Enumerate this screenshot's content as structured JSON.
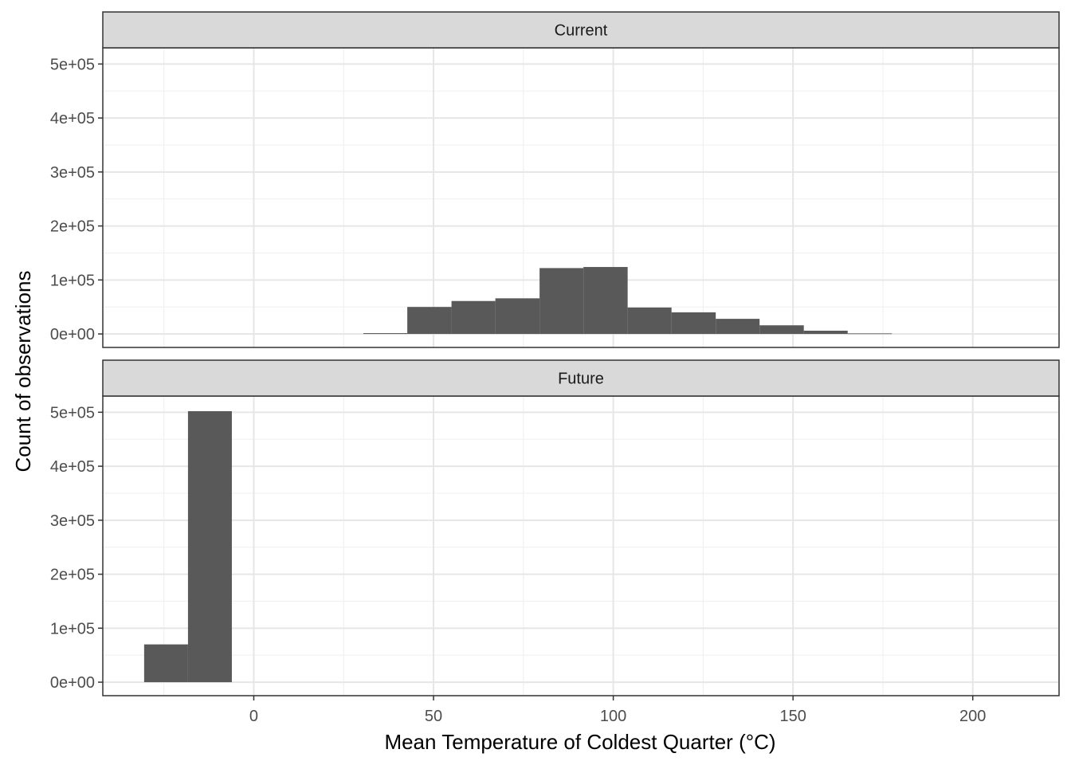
{
  "chart_data": {
    "type": "histogram",
    "xlabel": "Mean Temperature of Coldest Quarter (°C)",
    "ylabel": "Count of observations",
    "xlim": [
      -42,
      224
    ],
    "ylim": [
      -25000,
      530000
    ],
    "x_ticks": [
      0,
      50,
      100,
      150,
      200
    ],
    "x_tick_labels": [
      "0",
      "50",
      "100",
      "150",
      "200"
    ],
    "y_ticks": [
      0,
      100000,
      200000,
      300000,
      400000,
      500000
    ],
    "y_tick_labels": [
      "0e+00",
      "1e+05",
      "2e+05",
      "3e+05",
      "4e+05",
      "5e+05"
    ],
    "grid": true,
    "bar_color": "#595959",
    "strip_fill": "#d9d9d9",
    "panels": [
      {
        "strip_label": "Current",
        "bins": [
          {
            "x0": 30.5,
            "x1": 42.7,
            "count": 1500
          },
          {
            "x0": 42.7,
            "x1": 55.0,
            "count": 50000
          },
          {
            "x0": 55.0,
            "x1": 67.2,
            "count": 61000
          },
          {
            "x0": 67.2,
            "x1": 79.5,
            "count": 66000
          },
          {
            "x0": 79.5,
            "x1": 91.7,
            "count": 122000
          },
          {
            "x0": 91.7,
            "x1": 104.0,
            "count": 124000
          },
          {
            "x0": 104.0,
            "x1": 116.2,
            "count": 49000
          },
          {
            "x0": 116.2,
            "x1": 128.5,
            "count": 40000
          },
          {
            "x0": 128.5,
            "x1": 140.7,
            "count": 28000
          },
          {
            "x0": 140.7,
            "x1": 153.0,
            "count": 16000
          },
          {
            "x0": 153.0,
            "x1": 165.2,
            "count": 6000
          },
          {
            "x0": 165.2,
            "x1": 177.5,
            "count": 1000
          }
        ]
      },
      {
        "strip_label": "Future",
        "bins": [
          {
            "x0": -30.5,
            "x1": -18.3,
            "count": 70000
          },
          {
            "x0": -18.3,
            "x1": -6.1,
            "count": 502000
          }
        ]
      }
    ]
  }
}
